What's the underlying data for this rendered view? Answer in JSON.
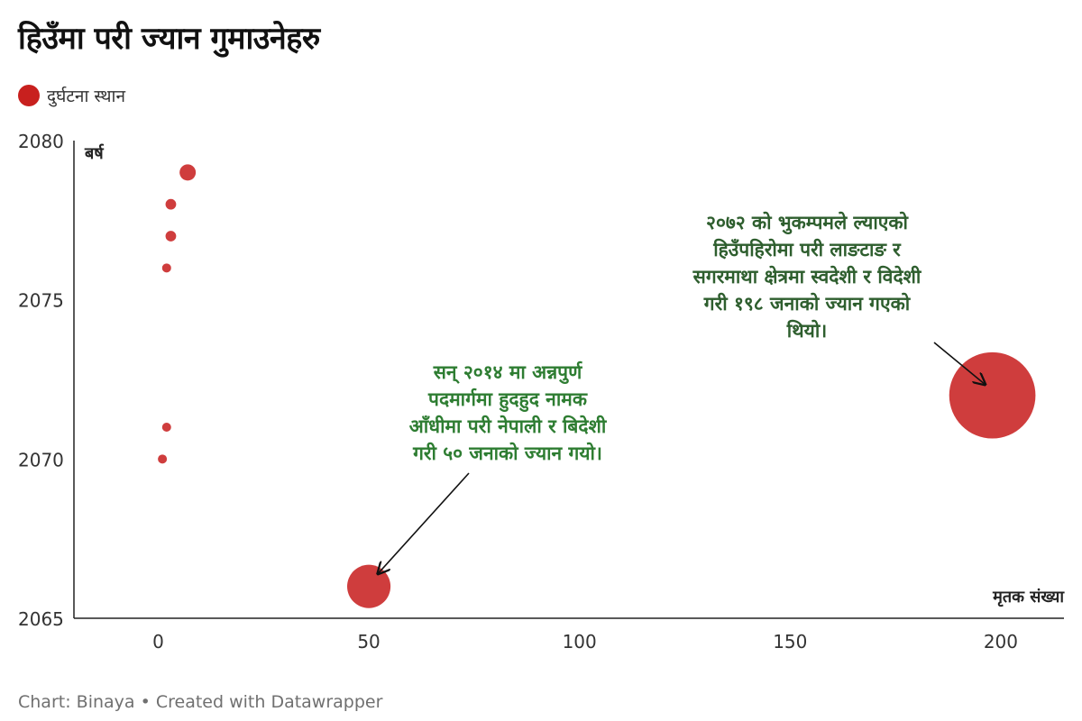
{
  "title": "हिउँमा परी ज्यान गुमाउनेहरु",
  "legend": {
    "label": "दुर्घटना स्थान",
    "color": "#c8201e"
  },
  "footer": {
    "chart_credit": "Chart: Binaya",
    "separator": "•",
    "created_with": "Created with Datawrapper"
  },
  "chart_data": {
    "type": "scatter",
    "title": "हिउँमा परी ज्यान गुमाउनेहरु",
    "xlabel": "मृतक संख्या",
    "ylabel": "बर्ष",
    "xlim": [
      -20,
      215
    ],
    "ylim": [
      2065,
      2080
    ],
    "xticks": [
      0,
      50,
      100,
      150,
      200
    ],
    "yticks": [
      2065,
      2070,
      2075,
      2080
    ],
    "grid": false,
    "legend_position": "top-left",
    "series": [
      {
        "name": "दुर्घटना स्थान",
        "color": "#cc3333",
        "points": [
          {
            "x": 1,
            "y": 2070
          },
          {
            "x": 2,
            "y": 2071
          },
          {
            "x": 2,
            "y": 2076
          },
          {
            "x": 3,
            "y": 2077
          },
          {
            "x": 3,
            "y": 2078
          },
          {
            "x": 7,
            "y": 2079
          },
          {
            "x": 50,
            "y": 2066
          },
          {
            "x": 198,
            "y": 2072
          }
        ]
      }
    ],
    "annotations": [
      {
        "text_lines": [
          "सन् २०१४ मा अन्नपुर्ण",
          "पदमार्गमा हुदहुद नामक",
          "आँधीमा परी नेपाली र बिदेशी",
          "गरी ५० जनाको ज्यान गयो।"
        ],
        "color": "#2e7d32",
        "target": {
          "x": 50,
          "y": 2066
        }
      },
      {
        "text_lines": [
          "२०७२ को भुकम्पमले ल्याएको",
          "हिउँपहिरोमा परी लाङटाङ र",
          "सगरमाथा क्षेत्रमा स्वदेशी र विदेशी",
          "गरी १९८ जनाको ज्यान गएको",
          "थियो।"
        ],
        "color": "#2e5e2e",
        "target": {
          "x": 198,
          "y": 2072
        }
      }
    ]
  }
}
